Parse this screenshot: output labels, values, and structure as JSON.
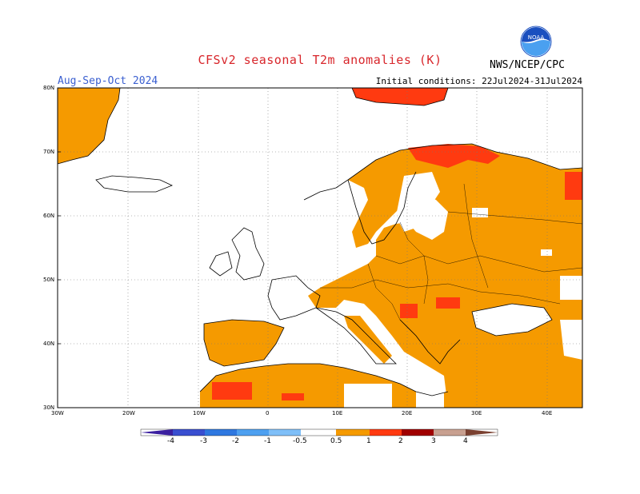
{
  "title": "CFSv2 seasonal T2m anomalies (K)",
  "season": "Aug-Sep-Oct 2024",
  "initial_conditions": "Initial conditions: 22Jul2024-31Jul2024",
  "organization": "NWS/NCEP/CPC",
  "logo_text": "NOAA",
  "lat_labels": [
    "80N",
    "70N",
    "60N",
    "50N",
    "40N",
    "30N"
  ],
  "lon_labels": [
    "30W",
    "20W",
    "10W",
    "0",
    "10E",
    "20E",
    "30E",
    "40E"
  ],
  "colorbar": {
    "labels": [
      "-4",
      "-3",
      "-2",
      "-1",
      "-0.5",
      "0.5",
      "1",
      "2",
      "3",
      "4"
    ],
    "colors": [
      "#3b1fa0",
      "#3a4fd0",
      "#2f78e0",
      "#4ea0f0",
      "#7fbff8",
      "#ffffff",
      "#f59a00",
      "#ff3a10",
      "#a00000",
      "#c8a090",
      "#7a4030"
    ]
  },
  "anomaly_colors": {
    "warm_05_1": "#f59a00",
    "warm_1_2": "#ff3a10",
    "warm_2_3": "#a00000"
  }
}
